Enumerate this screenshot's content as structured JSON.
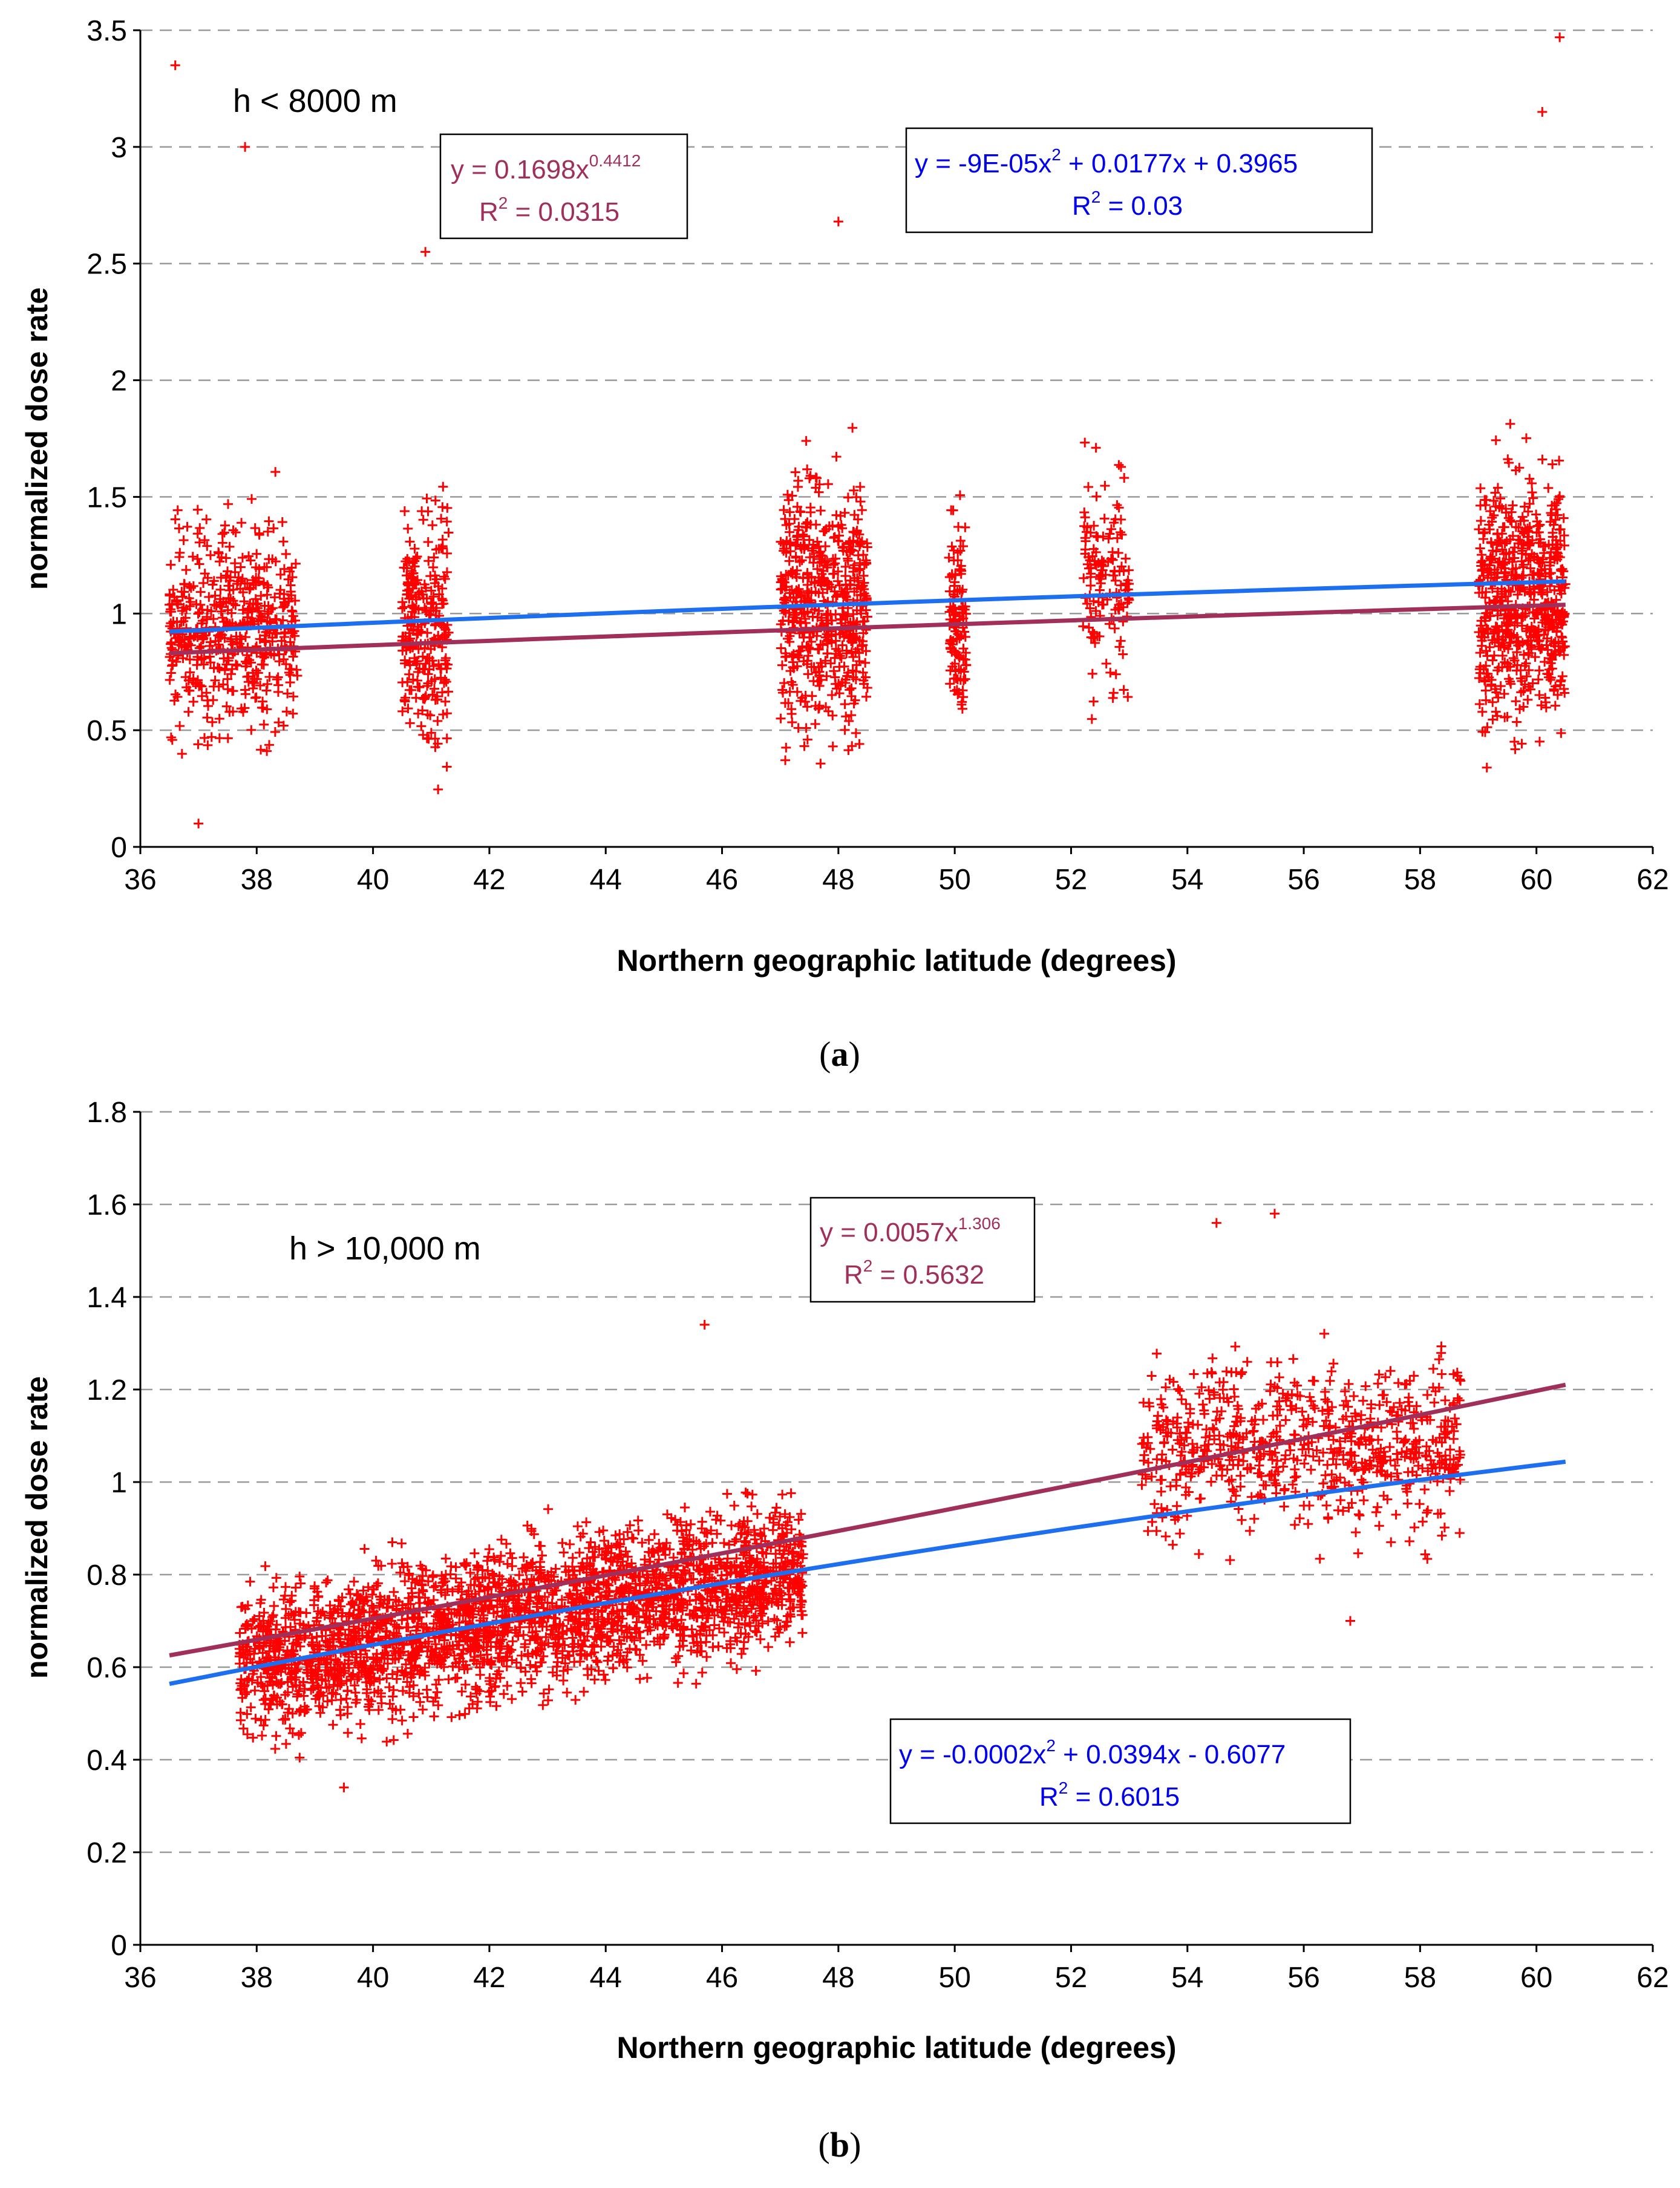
{
  "chart_data": [
    {
      "type": "scatter",
      "panel": "a",
      "caption_letter": "a",
      "condition_label": "h < 8000 m",
      "xlabel": "Northern geographic latitude (degrees)",
      "ylabel": "normalized dose rate",
      "xlim": [
        36,
        62
      ],
      "ylim": [
        0,
        3.5
      ],
      "x_ticks": [
        "36",
        "38",
        "40",
        "42",
        "44",
        "46",
        "48",
        "50",
        "52",
        "54",
        "56",
        "58",
        "60",
        "62"
      ],
      "y_ticks": [
        "0",
        "0.5",
        "1",
        "1.5",
        "2",
        "2.5",
        "3",
        "3.5"
      ],
      "grid": "horizontal dashed",
      "point_marker": "+",
      "point_color": "#ff0000",
      "clusters": [
        {
          "x_range": [
            36.5,
            38.7
          ],
          "y_center": 0.95,
          "y_spread": 0.38,
          "count": 520
        },
        {
          "x_range": [
            40.5,
            41.3
          ],
          "y_center": 0.92,
          "y_spread": 0.42,
          "count": 260
        },
        {
          "x_range": [
            47.0,
            48.5
          ],
          "y_center": 1.05,
          "y_spread": 0.45,
          "count": 560
        },
        {
          "x_range": [
            49.9,
            50.2
          ],
          "y_center": 1.0,
          "y_spread": 0.35,
          "count": 120
        },
        {
          "x_range": [
            52.2,
            53.0
          ],
          "y_center": 1.15,
          "y_spread": 0.38,
          "count": 140
        },
        {
          "x_range": [
            59.0,
            60.5
          ],
          "y_center": 1.05,
          "y_spread": 0.45,
          "count": 620
        }
      ],
      "notable_points": [
        [
          36.6,
          3.35
        ],
        [
          37.8,
          3.0
        ],
        [
          60.4,
          3.47
        ],
        [
          60.1,
          3.15
        ],
        [
          37.0,
          0.1
        ],
        [
          40.9,
          2.55
        ],
        [
          48.0,
          2.68
        ]
      ],
      "fits": [
        {
          "name": "power fit",
          "color": "#a0305a",
          "model": "power",
          "a": 0.1698,
          "b": 0.4412,
          "x_range": [
            36.5,
            60.5
          ],
          "equation_main": "y = 0.1698x",
          "equation_exp": "0.4412",
          "r2_value": "= 0.0315"
        },
        {
          "name": "polynomial fit",
          "color": "#1e6ff0",
          "model": "poly2",
          "c2": -9e-05,
          "c1": 0.0177,
          "c0": 0.3965,
          "x_range": [
            36.5,
            60.5
          ],
          "equation_main_1": "y = -9E-05x",
          "equation_exp": "2",
          "equation_main_2": " + 0.0177x + 0.3965",
          "r2_value": "= 0.03"
        }
      ]
    },
    {
      "type": "scatter",
      "panel": "b",
      "caption_letter": "b",
      "condition_label": "h > 10,000 m",
      "xlabel": "Northern geographic latitude (degrees)",
      "ylabel": "normalized dose rate",
      "xlim": [
        36,
        62
      ],
      "ylim": [
        0,
        1.8
      ],
      "x_ticks": [
        "36",
        "38",
        "40",
        "42",
        "44",
        "46",
        "48",
        "50",
        "52",
        "54",
        "56",
        "58",
        "60",
        "62"
      ],
      "y_ticks": [
        "0",
        "0.2",
        "0.4",
        "0.6",
        "0.8",
        "1",
        "1.2",
        "1.4",
        "1.6",
        "1.8"
      ],
      "grid": "horizontal dashed",
      "point_marker": "+",
      "point_color": "#ff0000",
      "clusters": [
        {
          "x_range": [
            37.7,
            47.4
          ],
          "trend": "poly",
          "y_spread": 0.13,
          "count": 2600
        },
        {
          "x_range": [
            53.2,
            58.7
          ],
          "trend": "flat",
          "y_center": 1.08,
          "y_spread": 0.15,
          "count": 700
        }
      ],
      "notable_points": [
        [
          45.7,
          1.34
        ],
        [
          39.5,
          0.34
        ],
        [
          55.5,
          1.58
        ],
        [
          54.5,
          1.56
        ],
        [
          56.8,
          0.7
        ]
      ],
      "fits": [
        {
          "name": "power fit",
          "color": "#a0305a",
          "model": "power",
          "a": 0.0057,
          "b": 1.306,
          "x_range": [
            36.5,
            60.5
          ],
          "equation_main": "y = 0.0057x",
          "equation_exp": "1.306",
          "r2_value": "= 0.5632"
        },
        {
          "name": "polynomial fit",
          "color": "#1e6ff0",
          "model": "poly2",
          "c2": -0.0002,
          "c1": 0.0394,
          "c0": -0.6077,
          "x_range": [
            36.5,
            60.5
          ],
          "equation_main_1": "y = -0.0002x",
          "equation_exp": "2",
          "equation_main_2": " + 0.0394x - 0.6077",
          "r2_value": "= 0.6015"
        }
      ]
    }
  ],
  "r2_letter": "R",
  "r2_exp": "2"
}
